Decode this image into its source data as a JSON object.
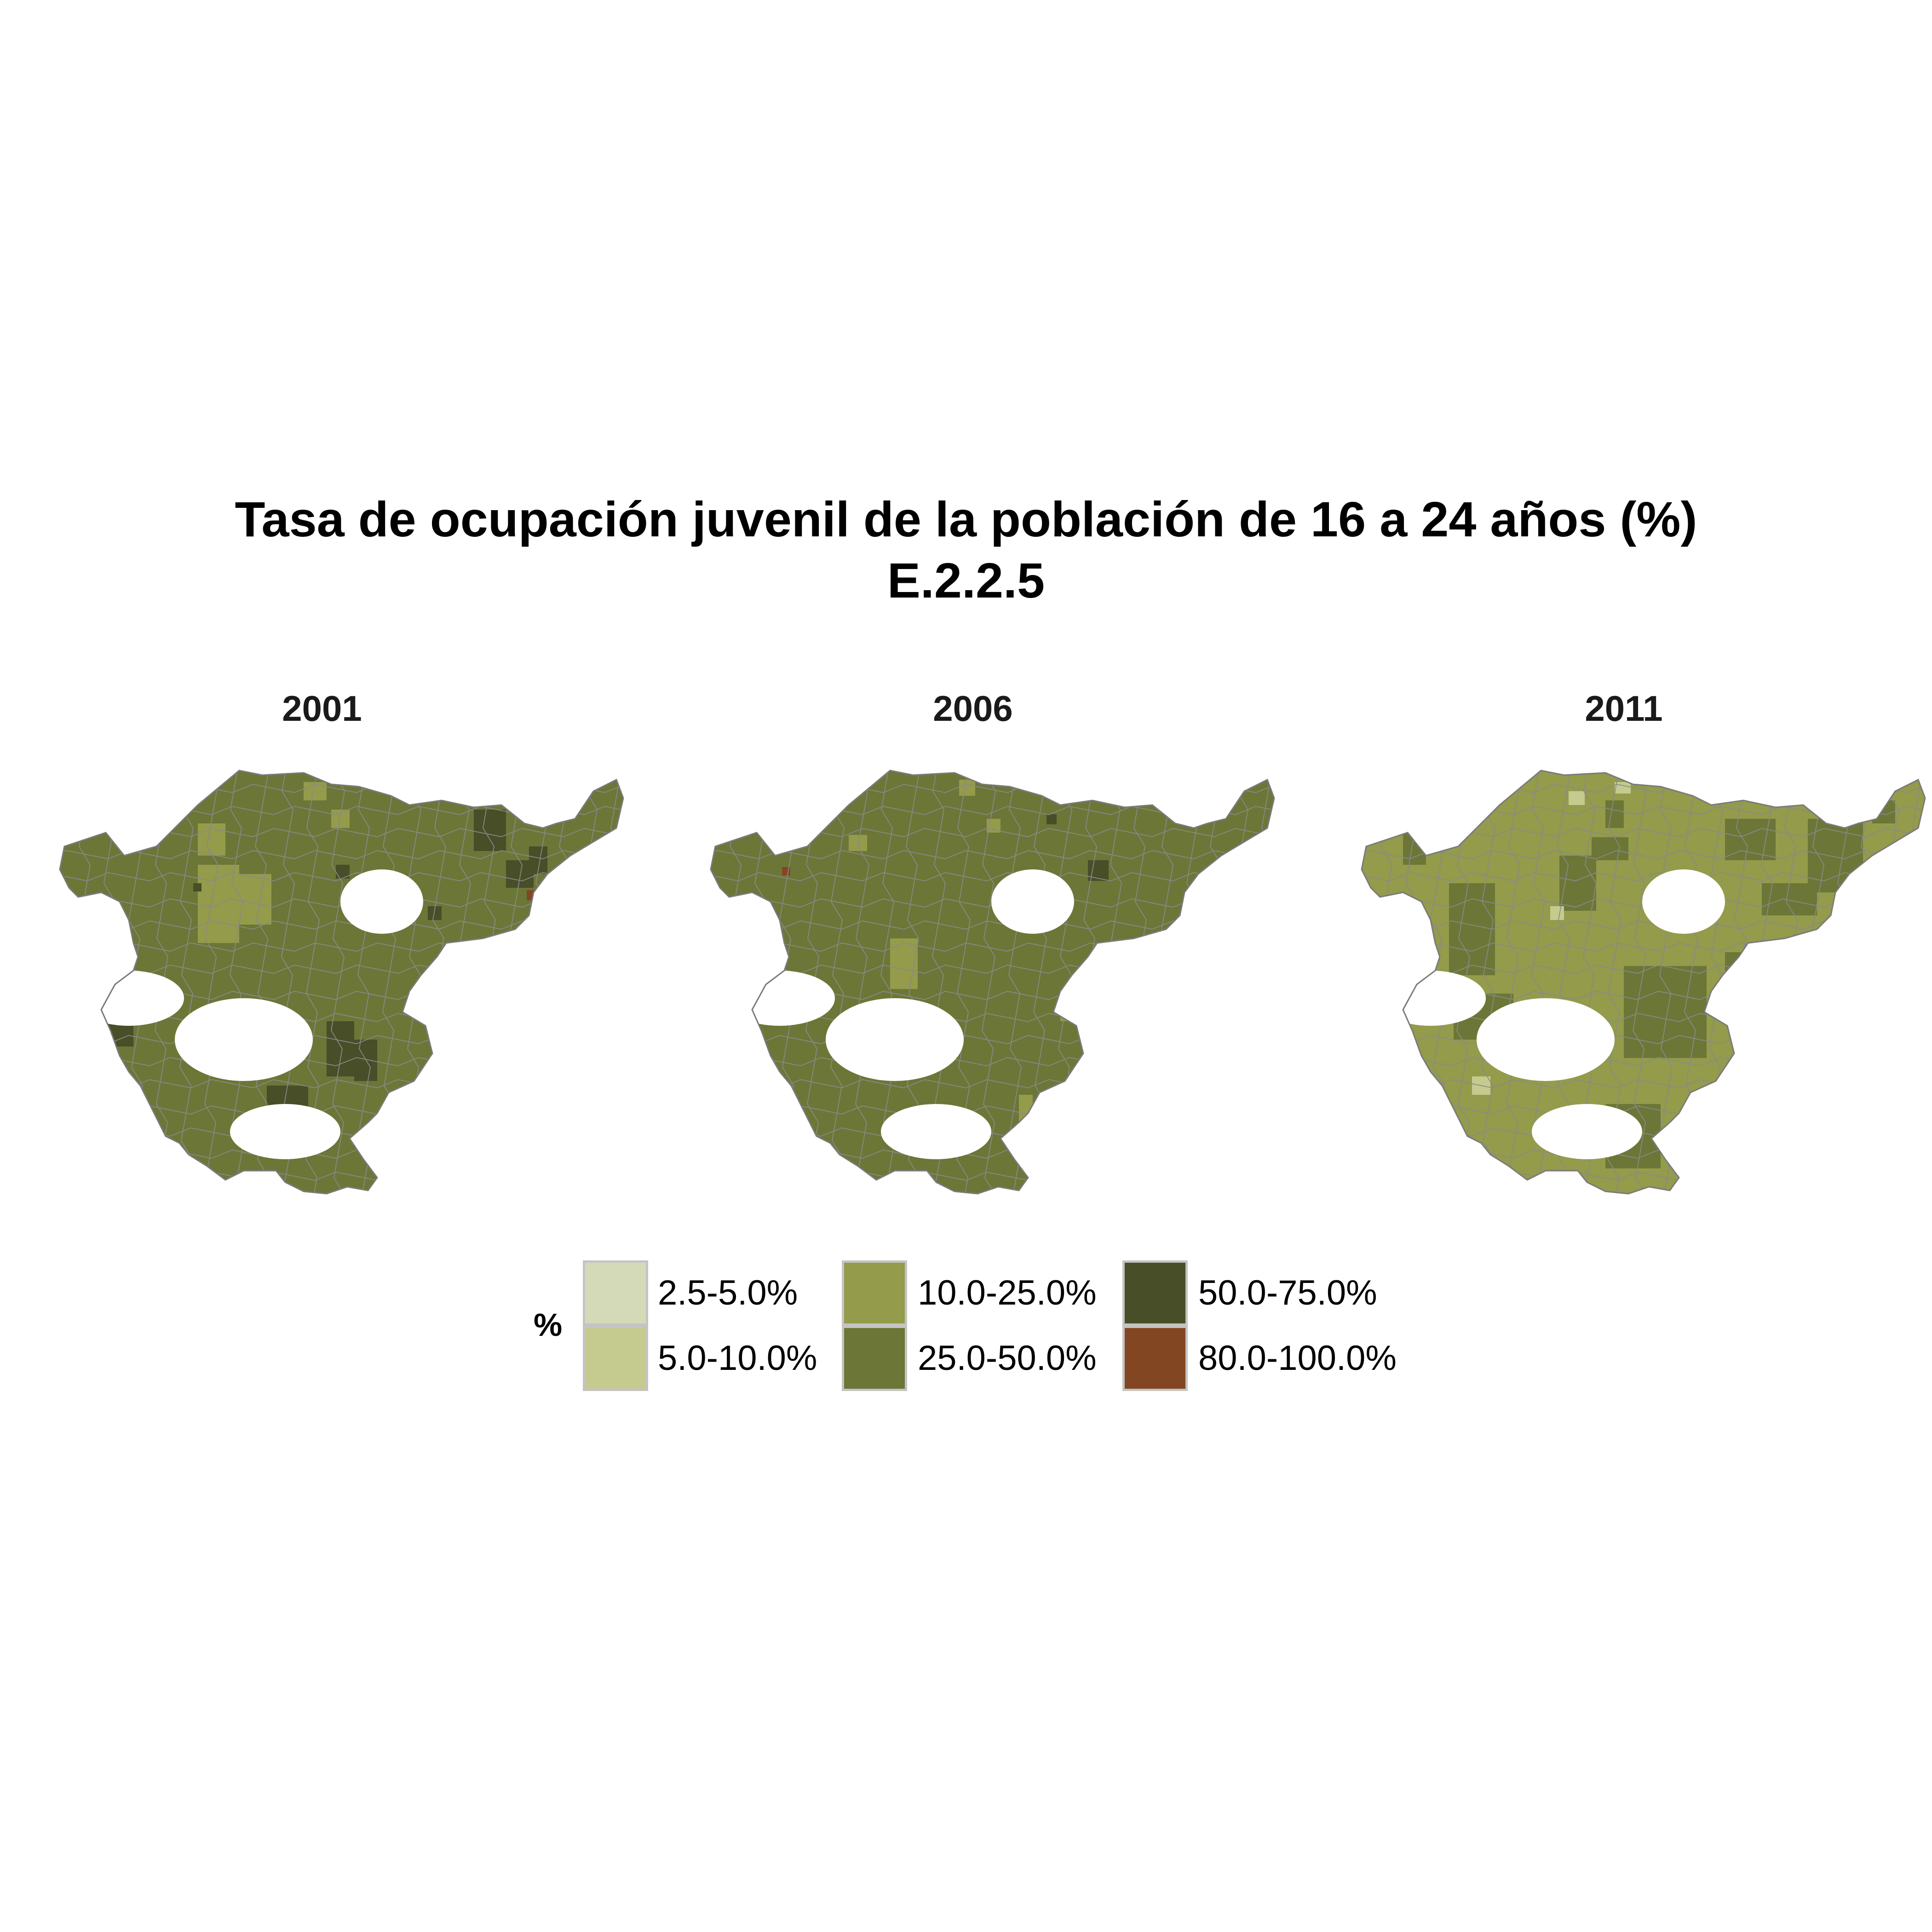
{
  "title": {
    "line1": "Tasa de ocupación juvenil de la población de 16 a 24 años (%)",
    "line2": "E.2.2.5"
  },
  "panels": [
    {
      "year": "2001"
    },
    {
      "year": "2006"
    },
    {
      "year": "2011"
    }
  ],
  "legend": {
    "title": "%",
    "items": [
      {
        "label": "2.5-5.0%",
        "color": "#d4dab7"
      },
      {
        "label": "5.0-10.0%",
        "color": "#c5cb8f"
      },
      {
        "label": "10.0-25.0%",
        "color": "#949b4a"
      },
      {
        "label": "25.0-50.0%",
        "color": "#6c7637"
      },
      {
        "label": "50.0-75.0%",
        "color": "#474e28"
      },
      {
        "label": "80.0-100.0%",
        "color": "#824722"
      }
    ]
  },
  "chart_data": {
    "type": "choropleth-map",
    "facets": [
      "2001",
      "2006",
      "2011"
    ],
    "dominant_class": {
      "2001": "25.0-50.0%",
      "2006": "25.0-50.0%",
      "2011": "10.0-25.0%"
    },
    "colors": {
      "2.5-5.0%": "#d4dab7",
      "5.0-10.0%": "#c5cb8f",
      "10.0-25.0%": "#949b4a",
      "25.0-50.0%": "#6c7637",
      "50.0-75.0%": "#474e28",
      "80.0-100.0%": "#824722"
    }
  }
}
